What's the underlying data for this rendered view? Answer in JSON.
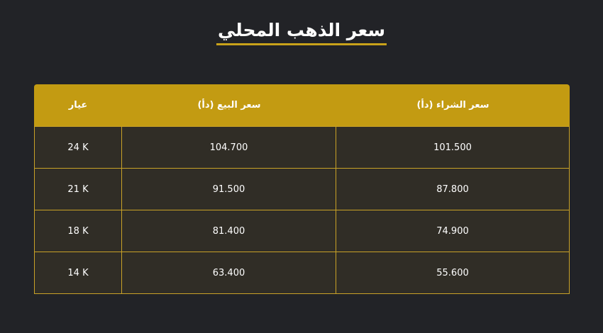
{
  "title": "سعر الذهب المحلي",
  "table": {
    "headers": {
      "karat": "عيار",
      "sell": "سعر البيع (دأ)",
      "buy": "سعر الشراء (دأ)"
    },
    "rows": [
      {
        "karat": "24 K",
        "sell": "104.700",
        "buy": "101.500"
      },
      {
        "karat": "21 K",
        "sell": "91.500",
        "buy": "87.800"
      },
      {
        "karat": "18 K",
        "sell": "81.400",
        "buy": "74.900"
      },
      {
        "karat": "14 K",
        "sell": "63.400",
        "buy": "55.600"
      }
    ]
  },
  "colors": {
    "background": "#222327",
    "header": "#c39b12",
    "row": "#302d26",
    "border": "#c9a227"
  }
}
